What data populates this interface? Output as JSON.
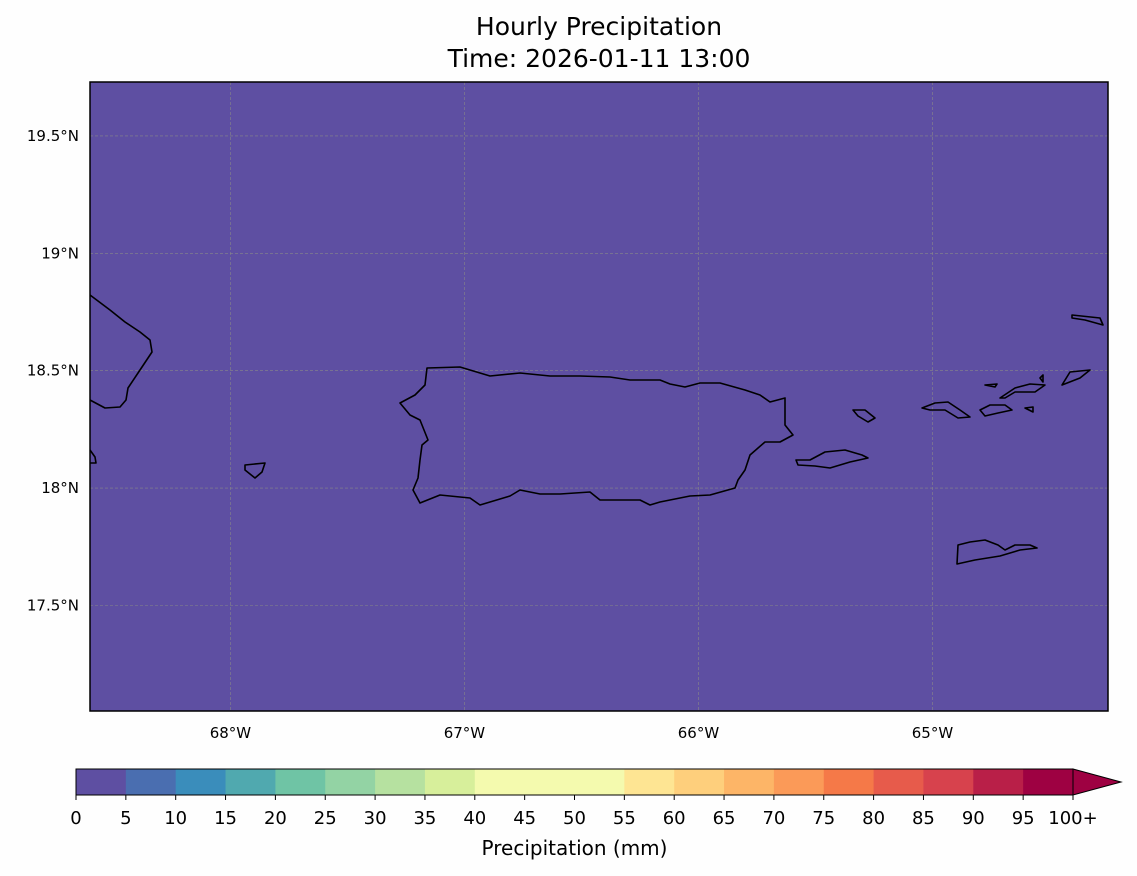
{
  "chart_data": {
    "type": "map",
    "title": "Hourly Precipitation",
    "subtitle": "Time: 2026-01-11 13:00",
    "extent": {
      "lon": [
        -68.6,
        -64.25
      ],
      "lat": [
        17.05,
        19.73
      ]
    },
    "field_value_mm": 0,
    "field_color": "#5e4fa2",
    "grid": true,
    "x_ticks": [
      {
        "value": -68,
        "label": "68°W"
      },
      {
        "value": -67,
        "label": "67°W"
      },
      {
        "value": -66,
        "label": "66°W"
      },
      {
        "value": -65,
        "label": "65°W"
      }
    ],
    "y_ticks": [
      {
        "value": 17.5,
        "label": "17.5°N"
      },
      {
        "value": 18,
        "label": "18°N"
      },
      {
        "value": 18.5,
        "label": "18.5°N"
      },
      {
        "value": 19,
        "label": "19°N"
      },
      {
        "value": 19.5,
        "label": "19.5°N"
      }
    ],
    "colorbar": {
      "label": "Precipitation (mm)",
      "levels": [
        0,
        5,
        10,
        15,
        20,
        25,
        30,
        35,
        40,
        45,
        50,
        55,
        60,
        65,
        70,
        75,
        80,
        85,
        90,
        95,
        100
      ],
      "tick_labels": [
        "0",
        "5",
        "10",
        "15",
        "20",
        "25",
        "30",
        "35",
        "40",
        "45",
        "50",
        "55",
        "60",
        "65",
        "70",
        "75",
        "80",
        "85",
        "90",
        "95",
        "100+"
      ],
      "colors": [
        "#5e4fa2",
        "#4a6eb0",
        "#3a8dbb",
        "#50a9af",
        "#6fc4a5",
        "#93d3a4",
        "#b6e1a0",
        "#d7ef9b",
        "#f4faae",
        "#f4faae",
        "#f4faae",
        "#fee593",
        "#fecf7c",
        "#fdb567",
        "#fb9a58",
        "#f57948",
        "#e75b4b",
        "#d7424d",
        "#b91f48",
        "#9e0142"
      ],
      "extend": "max",
      "extend_color": "#9e0142"
    }
  }
}
